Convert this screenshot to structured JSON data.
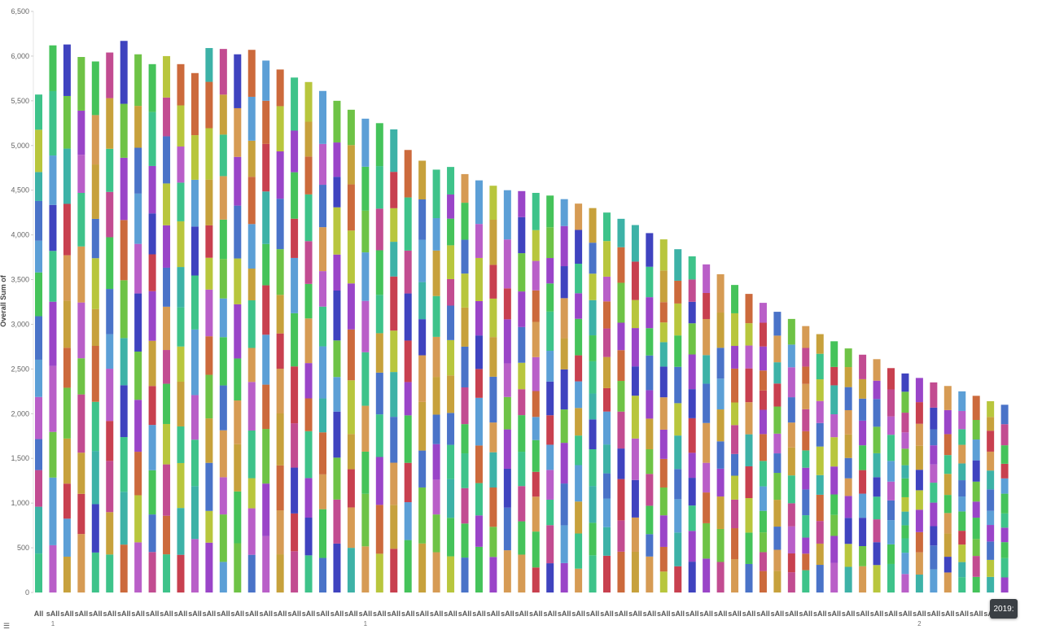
{
  "chart_data": {
    "type": "bar",
    "stacked": true,
    "ylabel": "Overall Sum of",
    "ylim": [
      0,
      6500
    ],
    "y_ticks": [
      0,
      500,
      1000,
      1500,
      2000,
      2500,
      3000,
      3500,
      4000,
      4500,
      5000,
      5500,
      6000,
      6500
    ],
    "y_tick_labels": [
      "0",
      "500",
      "1,000",
      "1,500",
      "2,000",
      "2,500",
      "3,000",
      "3,500",
      "4,000",
      "4,500",
      "5,000",
      "5,500",
      "6,000",
      "6,500"
    ],
    "x_first_label": "All",
    "x_repeat_label": "sAll",
    "x_sub_labels": [
      "1",
      "1",
      "2"
    ],
    "x_sub_positions": [
      1,
      23,
      62
    ],
    "totals": [
      5570,
      6120,
      6130,
      5990,
      5940,
      6040,
      6170,
      6020,
      5910,
      6000,
      5910,
      5810,
      6090,
      6080,
      6020,
      6070,
      5950,
      5850,
      5760,
      5710,
      5610,
      5500,
      5400,
      5300,
      5250,
      5180,
      4950,
      4830,
      4730,
      4760,
      4680,
      4610,
      4550,
      4500,
      4490,
      4470,
      4440,
      4400,
      4350,
      4300,
      4250,
      4180,
      4110,
      4020,
      3950,
      3840,
      3760,
      3670,
      3560,
      3440,
      3340,
      3240,
      3140,
      3060,
      2980,
      2890,
      2810,
      2730,
      2660,
      2610,
      2510,
      2450,
      2400,
      2350,
      2310,
      2250,
      2200,
      2140,
      2100
    ],
    "grid": false,
    "legend": "none"
  },
  "tooltip": {
    "text": "2019:"
  },
  "ui": {
    "menu_icon": "list-icon"
  },
  "palette": [
    "#3ec38a",
    "#c8404f",
    "#4a73c8",
    "#cc6a3c",
    "#3f43bf",
    "#45c35a",
    "#b95fc8",
    "#c7a13c",
    "#3db2a7",
    "#9a45c8",
    "#c24c91",
    "#5c9fd6",
    "#d69b54",
    "#b8c63d",
    "#6ec346"
  ]
}
